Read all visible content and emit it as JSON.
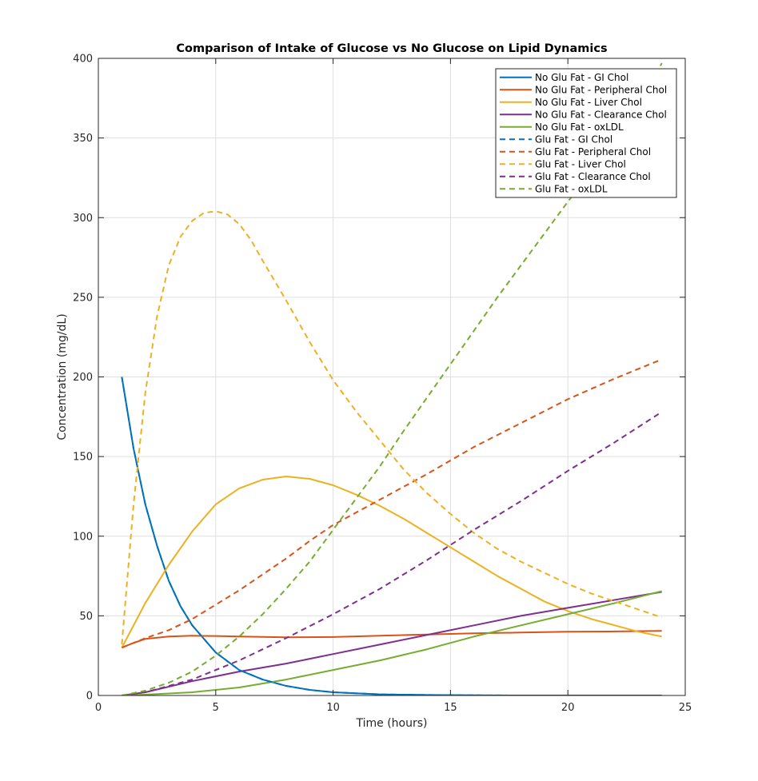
{
  "chart_data": {
    "type": "line",
    "title": "Comparison of Intake of Glucose vs No Glucose on Lipid Dynamics",
    "xlabel": "Time (hours)",
    "ylabel": "Concentration (mg/dL)",
    "xlim": [
      0,
      25
    ],
    "ylim": [
      0,
      400
    ],
    "xticks": [
      0,
      5,
      10,
      15,
      20,
      25
    ],
    "yticks": [
      0,
      50,
      100,
      150,
      200,
      250,
      300,
      350,
      400
    ],
    "grid": true,
    "legend_position": "top-right",
    "series": [
      {
        "name": "No Glu Fat - GI Chol",
        "color": "#0072BD",
        "style": "solid",
        "x": [
          1,
          1.5,
          2,
          2.5,
          3,
          3.5,
          4,
          5,
          6,
          7,
          8,
          9,
          10,
          12,
          14,
          16,
          18,
          20,
          22,
          24
        ],
        "y": [
          200,
          155,
          120,
          94,
          72,
          56,
          44,
          27,
          16,
          10,
          6,
          3.5,
          2,
          0.7,
          0.3,
          0.1,
          0,
          0,
          0,
          0
        ]
      },
      {
        "name": "No Glu Fat - Peripheral Chol",
        "color": "#D95319",
        "style": "solid",
        "x": [
          1,
          1.5,
          2,
          3,
          4,
          5,
          6,
          8,
          10,
          12,
          14,
          16,
          18,
          20,
          22,
          24
        ],
        "y": [
          30,
          33,
          35.5,
          37,
          37.5,
          37.3,
          37,
          36.5,
          36.7,
          37.5,
          38.3,
          39,
          39.5,
          40,
          40.2,
          40.5
        ]
      },
      {
        "name": "No Glu Fat - Liver Chol",
        "color": "#EDB120",
        "style": "solid",
        "x": [
          1,
          2,
          3,
          4,
          5,
          6,
          7,
          8,
          9,
          10,
          11,
          12,
          13,
          14,
          15,
          16,
          17,
          18,
          19,
          20,
          21,
          22,
          23,
          24
        ],
        "y": [
          30,
          58,
          82,
          103,
          120,
          130,
          135.5,
          137.5,
          136,
          132,
          126,
          119,
          111,
          102,
          93,
          84,
          75,
          67,
          59,
          53,
          48,
          44,
          40,
          37
        ]
      },
      {
        "name": "No Glu Fat - Clearance Chol",
        "color": "#7E2F8E",
        "style": "solid",
        "x": [
          1,
          2,
          4,
          6,
          8,
          10,
          12,
          14,
          16,
          18,
          20,
          22,
          24
        ],
        "y": [
          0,
          2,
          9,
          15,
          20,
          26,
          32,
          38,
          44,
          50,
          55,
          60,
          65
        ]
      },
      {
        "name": "No Glu Fat - oxLDL",
        "color": "#77AC30",
        "style": "solid",
        "x": [
          1,
          2,
          4,
          6,
          8,
          10,
          12,
          14,
          16,
          18,
          20,
          22,
          24
        ],
        "y": [
          0,
          0.5,
          2,
          5,
          10,
          16,
          22,
          29,
          37,
          44,
          51,
          58,
          65.5
        ]
      },
      {
        "name": "Glu Fat - GI Chol",
        "color": "#0072BD",
        "style": "dashed",
        "x": [
          1,
          1.5,
          2,
          2.5,
          3,
          3.5,
          4,
          5,
          6,
          7,
          8,
          9,
          10,
          12,
          14,
          16,
          18,
          20,
          22,
          24
        ],
        "y": [
          200,
          155,
          120,
          94,
          72,
          56,
          44,
          27,
          16,
          10,
          6,
          3.5,
          2,
          0.7,
          0.3,
          0.1,
          0,
          0,
          0,
          0
        ]
      },
      {
        "name": "Glu Fat - Peripheral Chol",
        "color": "#D95319",
        "style": "dashed",
        "x": [
          1,
          2,
          3,
          4,
          5,
          6,
          7,
          8,
          9,
          10,
          12,
          14,
          16,
          18,
          20,
          22,
          24
        ],
        "y": [
          30,
          36,
          41,
          48,
          57,
          66,
          76,
          86,
          97,
          107,
          123,
          139,
          156,
          171,
          186,
          199,
          211
        ]
      },
      {
        "name": "Glu Fat - Liver Chol",
        "color": "#EDB120",
        "style": "dashed",
        "x": [
          1,
          1.5,
          2,
          2.5,
          3,
          3.5,
          4,
          4.5,
          5,
          5.5,
          6,
          6.5,
          7,
          8,
          9,
          10,
          11,
          12,
          13,
          14,
          15,
          16,
          17,
          18,
          19,
          20,
          21,
          22,
          23,
          24
        ],
        "y": [
          32,
          120,
          190,
          238,
          270,
          288,
          298,
          303,
          304,
          302,
          296,
          286,
          273,
          248,
          222,
          198,
          178,
          160,
          142,
          127,
          114,
          102,
          92,
          84,
          77,
          70,
          64,
          59,
          54,
          49
        ]
      },
      {
        "name": "Glu Fat - Clearance Chol",
        "color": "#7E2F8E",
        "style": "dashed",
        "x": [
          1,
          2,
          4,
          6,
          8,
          10,
          12,
          14,
          16,
          18,
          20,
          22,
          24
        ],
        "y": [
          0,
          2,
          10,
          22,
          36,
          51,
          67,
          85,
          104,
          122,
          141,
          159,
          178
        ]
      },
      {
        "name": "Glu Fat - oxLDL",
        "color": "#77AC30",
        "style": "dashed",
        "x": [
          1,
          2,
          3,
          4,
          5,
          6,
          7,
          8,
          9,
          10,
          11,
          12,
          13,
          14,
          15,
          16,
          17,
          18,
          19,
          20,
          21,
          22,
          23,
          24
        ],
        "y": [
          0,
          3,
          8,
          15,
          25,
          37,
          51,
          67,
          84,
          104,
          124,
          144,
          166,
          187,
          208,
          229,
          250,
          270,
          290,
          310,
          329,
          348,
          368,
          397
        ]
      }
    ]
  }
}
